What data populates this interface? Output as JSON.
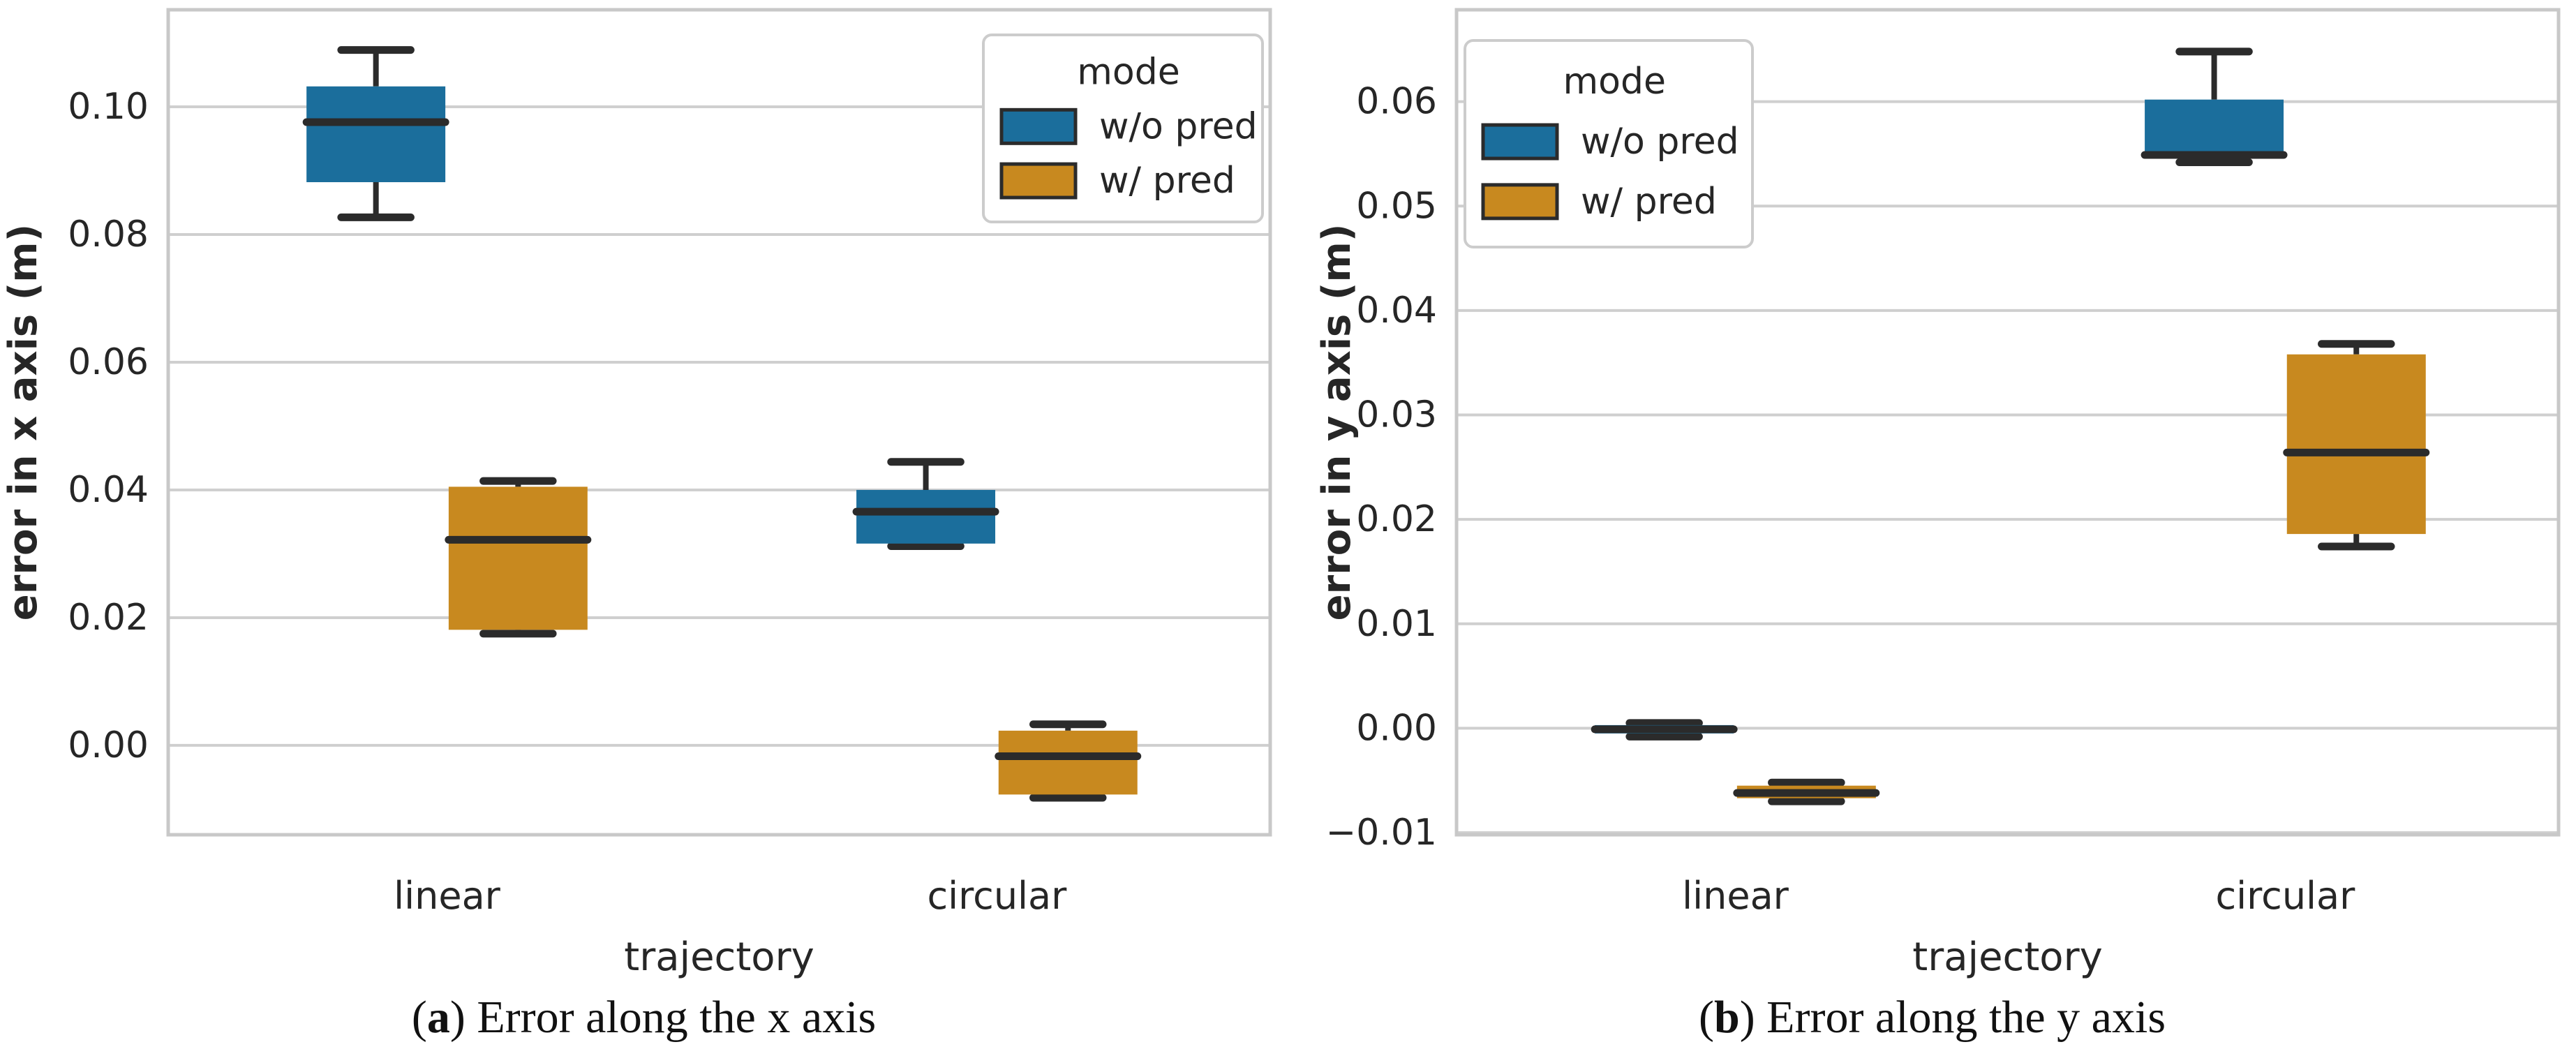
{
  "colors": {
    "blue": "#1b6e9c",
    "orange": "#c8891f",
    "box_line": "#2b2b2b",
    "grid": "#cfcfcf",
    "spine": "#c8c8c8",
    "text": "#262626"
  },
  "legend": {
    "title": "mode",
    "entries": [
      {
        "label": "w/o pred",
        "color_key": "blue"
      },
      {
        "label": "w/ pred",
        "color_key": "orange"
      }
    ]
  },
  "captions": [
    {
      "label": "a",
      "text": " Error along the x axis"
    },
    {
      "label": "b",
      "text": " Error along the y axis"
    }
  ],
  "chart_data": [
    {
      "type": "box",
      "title": "",
      "xlabel": "trajectory",
      "ylabel": "error in x axis (m)",
      "categories": [
        "linear",
        "circular"
      ],
      "legend_position": "top-right",
      "grid": true,
      "ylim": [
        -0.014,
        0.1152
      ],
      "yticks": [
        0.0,
        0.02,
        0.04,
        0.06,
        0.08,
        0.1
      ],
      "ytick_labels": [
        "0.00",
        "0.02",
        "0.04",
        "0.06",
        "0.08",
        "0.10"
      ],
      "series": [
        {
          "name": "w/o pred",
          "color_key": "blue",
          "boxes": [
            {
              "category": "linear",
              "whislo": 0.0827,
              "q1": 0.0882,
              "med": 0.0976,
              "q3": 0.1032,
              "whishi": 0.1089
            },
            {
              "category": "circular",
              "whislo": 0.0312,
              "q1": 0.0316,
              "med": 0.0366,
              "q3": 0.04,
              "whishi": 0.0444
            }
          ]
        },
        {
          "name": "w/ pred",
          "color_key": "orange",
          "boxes": [
            {
              "category": "linear",
              "whislo": 0.0175,
              "q1": 0.0181,
              "med": 0.0322,
              "q3": 0.0405,
              "whishi": 0.0414
            },
            {
              "category": "circular",
              "whislo": -0.0082,
              "q1": -0.0077,
              "med": -0.0017,
              "q3": 0.0023,
              "whishi": 0.0033
            }
          ]
        }
      ]
    },
    {
      "type": "box",
      "title": "",
      "xlabel": "trajectory",
      "ylabel": "error in y axis (m)",
      "categories": [
        "linear",
        "circular"
      ],
      "legend_position": "top-left",
      "grid": true,
      "ylim": [
        -0.0102,
        0.0688
      ],
      "yticks": [
        -0.01,
        0.0,
        0.01,
        0.02,
        0.03,
        0.04,
        0.05,
        0.06
      ],
      "ytick_labels": [
        "−0.01",
        "0.00",
        "0.01",
        "0.02",
        "0.03",
        "0.04",
        "0.05",
        "0.06"
      ],
      "series": [
        {
          "name": "w/o pred",
          "color_key": "blue",
          "boxes": [
            {
              "category": "linear",
              "whislo": -0.0008,
              "q1": -0.0005,
              "med": -0.0001,
              "q3": 0.0003,
              "whishi": 0.0005
            },
            {
              "category": "circular",
              "whislo": 0.0542,
              "q1": 0.0546,
              "med": 0.0549,
              "q3": 0.0602,
              "whishi": 0.0648
            }
          ]
        },
        {
          "name": "w/ pred",
          "color_key": "orange",
          "boxes": [
            {
              "category": "linear",
              "whislo": -0.007,
              "q1": -0.0067,
              "med": -0.0062,
              "q3": -0.0055,
              "whishi": -0.0052
            },
            {
              "category": "circular",
              "whislo": 0.0174,
              "q1": 0.0186,
              "med": 0.0264,
              "q3": 0.0358,
              "whishi": 0.0368
            }
          ]
        }
      ]
    }
  ]
}
